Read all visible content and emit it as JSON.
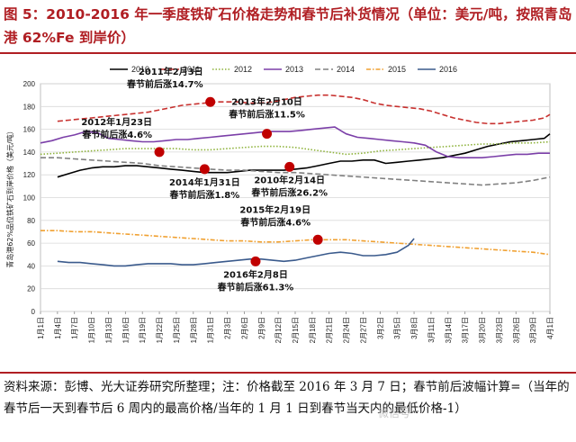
{
  "title": "图 5：2010-2016 年一季度铁矿石价格走势和春节后补货情况（单位：美元/吨，按照青岛港 62%Fe 到岸价）",
  "footnote": "资料来源：彭博、光大证券研究所整理；注：价格截至 2016 年 3 月 7 日；春节前后波幅计算=（当年的春节后一天到春节后 6 周内的最高价格/当年的 1 月 1 日到春节当天内的最低价格-1）",
  "watermark": "微信号",
  "chart_data": {
    "type": "line",
    "ylabel": "青岛港62%品位铁矿石到岸价格（美元/吨）",
    "ylim": [
      0,
      200
    ],
    "yticks": [
      0,
      20,
      40,
      60,
      80,
      100,
      120,
      140,
      160,
      180,
      200
    ],
    "x_tick_labels": [
      "1月1日",
      "1月4日",
      "1月7日",
      "1月10日",
      "1月13日",
      "1月16日",
      "1月19日",
      "1月22日",
      "1月25日",
      "1月28日",
      "1月31日",
      "2月3日",
      "2月6日",
      "2月9日",
      "2月12日",
      "2月15日",
      "2月18日",
      "2月21日",
      "2月24日",
      "2月27日",
      "3月2日",
      "3月5日",
      "3月8日",
      "3月11日",
      "3月14日",
      "3月17日",
      "3月20日",
      "3月23日",
      "3月26日",
      "3月29日",
      "4月1日"
    ],
    "x_range_days": [
      0,
      90
    ],
    "legend_position": "top",
    "series": [
      {
        "name": "2010",
        "color": "#000000",
        "dash": "solid",
        "x": [
          3,
          5,
          7,
          9,
          11,
          13,
          15,
          17,
          19,
          21,
          23,
          25,
          27,
          29,
          31,
          33,
          35,
          37,
          39,
          41,
          43,
          45,
          47,
          49,
          51,
          53,
          55,
          57,
          59,
          61,
          63,
          65,
          67,
          69,
          71,
          73,
          75,
          77,
          79,
          81,
          83,
          85,
          87,
          89,
          90
        ],
        "y": [
          118,
          121,
          124,
          126,
          127,
          127,
          128,
          128,
          127,
          126,
          125,
          124,
          123,
          122,
          122,
          122,
          123,
          124,
          124,
          124,
          124,
          125,
          126,
          128,
          130,
          132,
          132,
          133,
          133,
          130,
          131,
          132,
          133,
          134,
          135,
          137,
          139,
          142,
          145,
          147,
          149,
          150,
          151,
          152,
          156
        ]
      },
      {
        "name": "2011",
        "color": "#c8312f",
        "dash": "long-dash",
        "x": [
          3,
          5,
          7,
          9,
          11,
          13,
          15,
          17,
          19,
          21,
          23,
          25,
          27,
          29,
          31,
          33,
          35,
          37,
          39,
          41,
          43,
          45,
          47,
          49,
          51,
          53,
          55,
          57,
          59,
          61,
          63,
          65,
          67,
          69,
          71,
          73,
          75,
          77,
          79,
          81,
          83,
          85,
          87,
          89,
          90
        ],
        "y": [
          167,
          168,
          169,
          170,
          171,
          172,
          173,
          174,
          175,
          177,
          179,
          181,
          182,
          183,
          184,
          184,
          184,
          183,
          183,
          184,
          186,
          188,
          189,
          190,
          190,
          189,
          188,
          186,
          183,
          181,
          180,
          179,
          178,
          176,
          173,
          170,
          168,
          166,
          165,
          165,
          166,
          167,
          168,
          170,
          173
        ]
      },
      {
        "name": "2012",
        "color": "#8db23a",
        "dash": "dot",
        "x": [
          0,
          3,
          6,
          9,
          12,
          15,
          18,
          21,
          24,
          27,
          30,
          33,
          36,
          39,
          42,
          45,
          48,
          51,
          54,
          57,
          60,
          63,
          66,
          69,
          72,
          75,
          78,
          81,
          84,
          87,
          90
        ],
        "y": [
          138,
          139,
          140,
          141,
          142,
          143,
          143,
          143,
          143,
          142,
          142,
          143,
          144,
          145,
          145,
          144,
          142,
          140,
          138,
          139,
          141,
          142,
          143,
          144,
          145,
          146,
          147,
          147,
          148,
          148,
          149
        ]
      },
      {
        "name": "2013",
        "color": "#7b3fa8",
        "dash": "solid",
        "x": [
          0,
          2,
          4,
          6,
          8,
          10,
          12,
          14,
          16,
          18,
          20,
          22,
          24,
          26,
          28,
          30,
          32,
          34,
          36,
          38,
          40,
          42,
          44,
          46,
          48,
          50,
          52,
          54,
          56,
          58,
          60,
          62,
          64,
          66,
          68,
          70,
          72,
          74,
          76,
          78,
          80,
          82,
          84,
          86,
          88,
          90
        ],
        "y": [
          148,
          150,
          153,
          155,
          158,
          157,
          152,
          151,
          150,
          149,
          149,
          150,
          151,
          151,
          152,
          153,
          154,
          155,
          156,
          157,
          158,
          158,
          158,
          159,
          160,
          161,
          162,
          156,
          153,
          152,
          151,
          150,
          149,
          148,
          146,
          140,
          136,
          135,
          135,
          135,
          136,
          137,
          138,
          138,
          139,
          139
        ]
      },
      {
        "name": "2014",
        "color": "#808080",
        "dash": "long-dash",
        "x": [
          0,
          3,
          6,
          9,
          12,
          15,
          18,
          21,
          24,
          27,
          30,
          33,
          36,
          39,
          42,
          45,
          48,
          51,
          54,
          57,
          60,
          63,
          66,
          69,
          72,
          75,
          78,
          81,
          84,
          87,
          90
        ],
        "y": [
          135,
          135,
          134,
          133,
          132,
          131,
          130,
          128,
          127,
          126,
          125,
          124,
          124,
          123,
          122,
          122,
          121,
          120,
          119,
          118,
          117,
          116,
          115,
          114,
          113,
          112,
          111,
          112,
          113,
          115,
          118
        ]
      },
      {
        "name": "2015",
        "color": "#f0a030",
        "dash": "dash-dot",
        "x": [
          0,
          3,
          6,
          9,
          12,
          15,
          18,
          21,
          24,
          27,
          30,
          33,
          36,
          39,
          42,
          45,
          48,
          51,
          54,
          57,
          60,
          63,
          66,
          69,
          72,
          75,
          78,
          81,
          84,
          87,
          90
        ],
        "y": [
          71,
          71,
          70,
          70,
          69,
          68,
          67,
          66,
          65,
          64,
          63,
          62,
          62,
          61,
          61,
          62,
          63,
          63,
          63,
          62,
          61,
          60,
          59,
          58,
          57,
          56,
          55,
          54,
          53,
          52,
          50
        ]
      },
      {
        "name": "2016",
        "color": "#3a5a8c",
        "dash": "solid",
        "x": [
          3,
          5,
          7,
          9,
          11,
          13,
          15,
          17,
          19,
          21,
          23,
          25,
          27,
          29,
          31,
          33,
          35,
          37,
          39,
          41,
          43,
          45,
          47,
          49,
          51,
          53,
          55,
          57,
          59,
          61,
          63,
          65,
          66
        ],
        "y": [
          44,
          43,
          43,
          42,
          41,
          40,
          40,
          41,
          42,
          42,
          42,
          41,
          41,
          42,
          43,
          44,
          45,
          46,
          46,
          45,
          44,
          45,
          47,
          49,
          51,
          52,
          51,
          49,
          49,
          50,
          52,
          58,
          64
        ]
      }
    ],
    "markers": [
      {
        "x": 30,
        "y": 184,
        "label": [
          "2011年2月3日",
          "春节前后涨14.7%"
        ],
        "label_pos": "above-left"
      },
      {
        "x": 21,
        "y": 140,
        "label": [
          "2012年1月23日",
          "春节前后涨4.6%"
        ],
        "label_pos": "above-left"
      },
      {
        "x": 40,
        "y": 156,
        "label": [
          "2013年2月10日",
          "春节前后涨11.5%"
        ],
        "label_pos": "above"
      },
      {
        "x": 29,
        "y": 125,
        "label": [
          "2014年1月31日",
          "春节前后涨1.8%"
        ],
        "label_pos": "below"
      },
      {
        "x": 44,
        "y": 127,
        "label": [
          "2010年2月14日",
          "春节前后涨26.2%"
        ],
        "label_pos": "below"
      },
      {
        "x": 49,
        "y": 63,
        "label": [
          "2015年2月19日",
          "春节前后涨4.6%"
        ],
        "label_pos": "above-left"
      },
      {
        "x": 38,
        "y": 44,
        "label": [
          "2016年2月8日",
          "春节前后涨61.3%"
        ],
        "label_pos": "below"
      }
    ]
  }
}
